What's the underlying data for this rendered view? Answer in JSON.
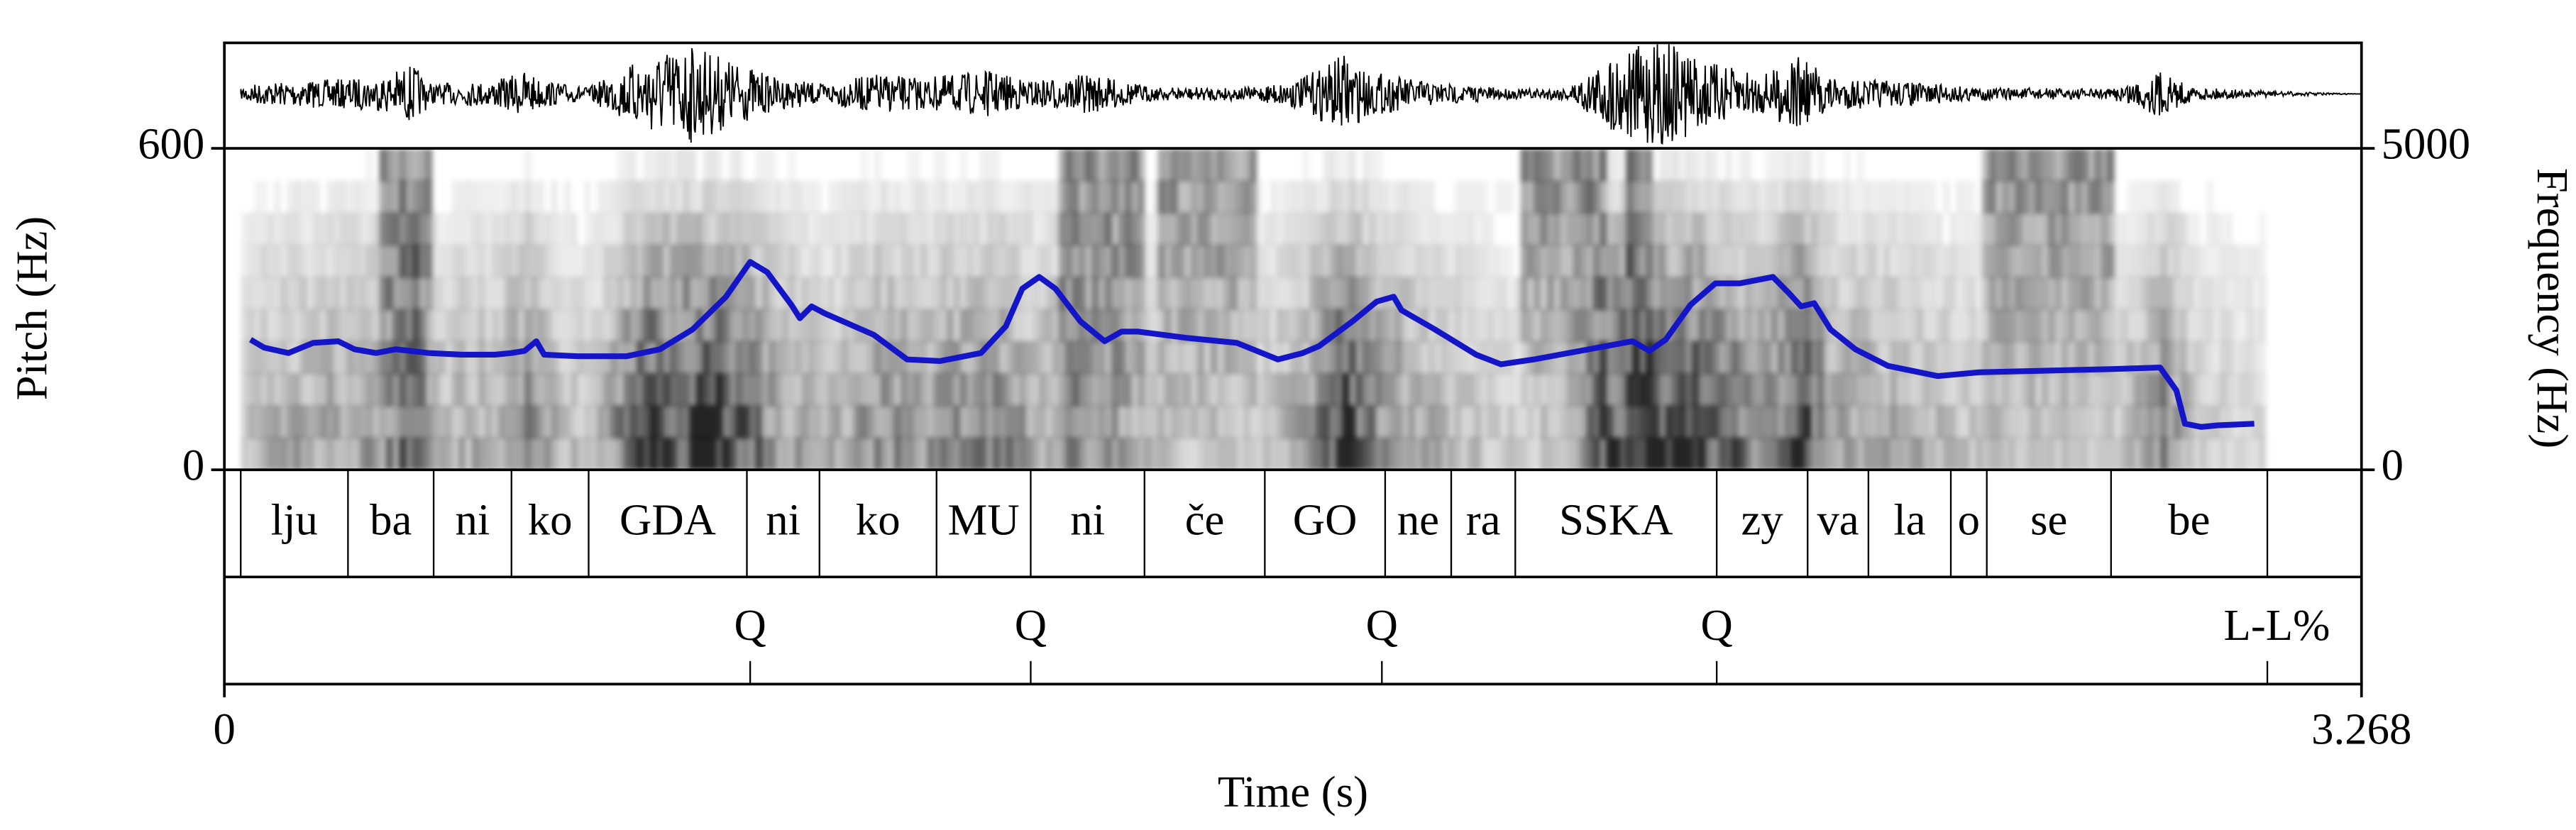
{
  "chart_data": {
    "type": "line",
    "x_label": "Time (s)",
    "y_label": "Pitch (Hz)",
    "y2_label": "Frequency (Hz)",
    "xlim": [
      0,
      3.268
    ],
    "xticks": [
      0,
      3.268
    ],
    "ylim": [
      0,
      600
    ],
    "yticks": [
      0,
      600
    ],
    "y2lim": [
      0,
      5000
    ],
    "y2ticks": [
      0,
      5000
    ],
    "series": [
      {
        "color": "#1515c8",
        "x": [
          0.04,
          0.061,
          0.098,
          0.136,
          0.174,
          0.199,
          0.232,
          0.262,
          0.313,
          0.363,
          0.414,
          0.439,
          0.459,
          0.477,
          0.489,
          0.54,
          0.615,
          0.666,
          0.716,
          0.767,
          0.804,
          0.83,
          0.867,
          0.88,
          0.898,
          0.918,
          0.993,
          1.044,
          1.094,
          1.157,
          1.195,
          1.22,
          1.246,
          1.271,
          1.309,
          1.346,
          1.372,
          1.397,
          1.473,
          1.548,
          1.611,
          1.649,
          1.674,
          1.725,
          1.762,
          1.788,
          1.8,
          1.851,
          1.914,
          1.952,
          2.002,
          2.153,
          2.179,
          2.204,
          2.242,
          2.28,
          2.317,
          2.368,
          2.393,
          2.411,
          2.431,
          2.456,
          2.494,
          2.544,
          2.62,
          2.683,
          2.885,
          2.96,
          2.985,
          2.998,
          3.011,
          3.023,
          3.048,
          3.104
        ],
        "values": [
          243,
          228,
          218,
          237,
          240,
          225,
          218,
          225,
          218,
          215,
          215,
          218,
          222,
          240,
          215,
          212,
          212,
          225,
          262,
          323,
          388,
          369,
          308,
          283,
          305,
          292,
          252,
          206,
          203,
          218,
          268,
          338,
          360,
          338,
          277,
          240,
          258,
          258,
          246,
          237,
          206,
          218,
          231,
          277,
          314,
          323,
          298,
          262,
          215,
          197,
          206,
          240,
          222,
          243,
          308,
          348,
          348,
          360,
          329,
          305,
          311,
          262,
          225,
          194,
          175,
          182,
          188,
          191,
          148,
          86,
          83,
          80,
          83,
          86
        ]
      }
    ],
    "tiers": [
      {
        "labels": [
          "lju",
          "ba",
          "ni",
          "ko",
          "GDA",
          "ni",
          "ko",
          "MU",
          "ni",
          "če",
          "GO",
          "ne",
          "ra",
          "SSKA",
          "zy",
          "va",
          "la",
          "o",
          "se",
          "be"
        ],
        "boundaries": [
          0.025,
          0.189,
          0.32,
          0.439,
          0.557,
          0.799,
          0.91,
          1.089,
          1.233,
          1.407,
          1.591,
          1.775,
          1.876,
          1.974,
          2.282,
          2.421,
          2.514,
          2.64,
          2.695,
          2.885,
          3.124
        ]
      },
      {
        "labels": [
          "Q",
          "Q",
          "Q",
          "Q",
          "L-L%"
        ],
        "times": [
          0.804,
          1.233,
          1.77,
          2.282,
          3.124
        ]
      }
    ]
  }
}
